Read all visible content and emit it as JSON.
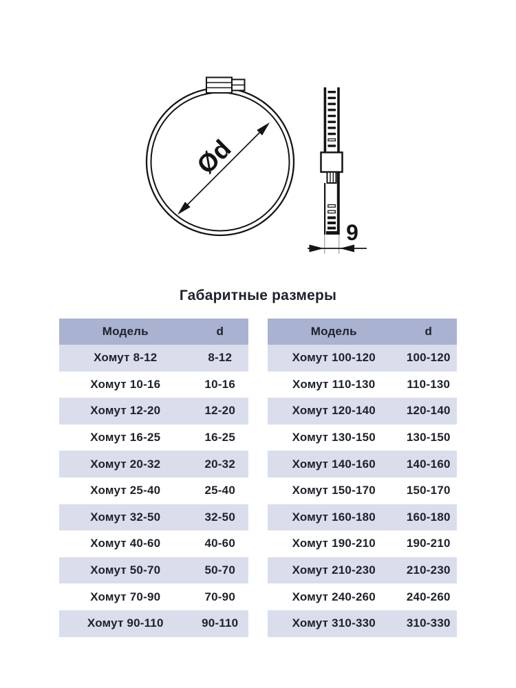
{
  "section": {
    "title": "Габаритные размеры"
  },
  "diagram": {
    "front_view": {
      "diameter_label": "Ød"
    },
    "side_view": {
      "width_label": "9"
    }
  },
  "tables": {
    "left": {
      "headers": [
        "Модель",
        "d"
      ],
      "rows": [
        [
          "Хомут 8-12",
          "8-12"
        ],
        [
          "Хомут 10-16",
          "10-16"
        ],
        [
          "Хомут 12-20",
          "12-20"
        ],
        [
          "Хомут 16-25",
          "16-25"
        ],
        [
          "Хомут 20-32",
          "20-32"
        ],
        [
          "Хомут 25-40",
          "25-40"
        ],
        [
          "Хомут 32-50",
          "32-50"
        ],
        [
          "Хомут 40-60",
          "40-60"
        ],
        [
          "Хомут 50-70",
          "50-70"
        ],
        [
          "Хомут 70-90",
          "70-90"
        ],
        [
          "Хомут 90-110",
          "90-110"
        ]
      ]
    },
    "right": {
      "headers": [
        "Модель",
        "d"
      ],
      "rows": [
        [
          "Хомут 100-120",
          "100-120"
        ],
        [
          "Хомут 110-130",
          "110-130"
        ],
        [
          "Хомут 120-140",
          "120-140"
        ],
        [
          "Хомут 130-150",
          "130-150"
        ],
        [
          "Хомут 140-160",
          "140-160"
        ],
        [
          "Хомут 150-170",
          "150-170"
        ],
        [
          "Хомут 160-180",
          "160-180"
        ],
        [
          "Хомут 190-210",
          "190-210"
        ],
        [
          "Хомут 210-230",
          "210-230"
        ],
        [
          "Хомут 240-260",
          "240-260"
        ],
        [
          "Хомут 310-330",
          "310-330"
        ]
      ]
    }
  },
  "colors": {
    "header_bg": "#a9b2d0",
    "row_alt_bg": "#d9ddec",
    "row_bg": "#ffffff",
    "text": "#1d2129",
    "line": "#141414"
  }
}
